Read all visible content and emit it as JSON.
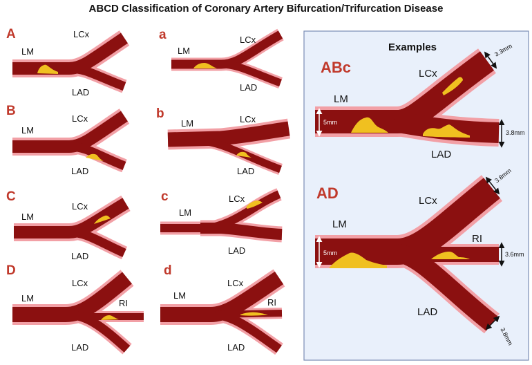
{
  "title": "ABCD Classification of Coronary Artery Bifurcation/Trifurcation Disease",
  "colors": {
    "vessel_outer": "#f2a0a6",
    "vessel_inner": "#8b1010",
    "plaque": "#f0c020",
    "letter": "#c0392b",
    "examples_bg": "#e9f0fb",
    "examples_border": "#7a8db5"
  },
  "panels": [
    {
      "letter": "A",
      "lm": "LM",
      "lcx": "LCx",
      "lad": "LAD"
    },
    {
      "letter": "a",
      "lm": "LM",
      "lcx": "LCx",
      "lad": "LAD"
    },
    {
      "letter": "B",
      "lm": "LM",
      "lcx": "LCx",
      "lad": "LAD"
    },
    {
      "letter": "b",
      "lm": "LM",
      "lcx": "LCx",
      "lad": "LAD"
    },
    {
      "letter": "C",
      "lm": "LM",
      "lcx": "LCx",
      "lad": "LAD"
    },
    {
      "letter": "c",
      "lm": "LM",
      "lcx": "LCx",
      "lad": "LAD"
    },
    {
      "letter": "D",
      "lm": "LM",
      "lcx": "LCx",
      "lad": "LAD",
      "ri": "RI"
    },
    {
      "letter": "d",
      "lm": "LM",
      "lcx": "LCx",
      "lad": "LAD",
      "ri": "RI"
    }
  ],
  "examples": {
    "heading": "Examples",
    "abc": {
      "letter": "ABc",
      "lm": "LM",
      "lcx": "LCx",
      "lad": "LAD",
      "lm_size": "5mm",
      "lcx_size": "3.3mm",
      "lad_size": "3.8mm"
    },
    "ad": {
      "letter": "AD",
      "lm": "LM",
      "lcx": "LCx",
      "lad": "LAD",
      "ri": "RI",
      "lm_size": "5mm",
      "lcx_size": "3.8mm",
      "ri_size": "3.6mm",
      "lad_size": "3.8mm"
    }
  }
}
